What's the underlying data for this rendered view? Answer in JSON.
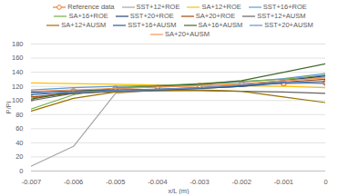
{
  "chart_data": {
    "type": "line",
    "x_label": "x/L (m)",
    "y_label": "P/Pi",
    "x": [
      -0.007,
      -0.006,
      -0.005,
      -0.004,
      -0.003,
      -0.002,
      -0.001,
      0
    ],
    "xlim": [
      -0.007,
      0
    ],
    "xticks": [
      -0.007,
      -0.006,
      -0.005,
      -0.004,
      -0.003,
      -0.002,
      -0.001,
      0
    ],
    "ylim": [
      0,
      180
    ],
    "yticks": [
      0,
      20,
      40,
      60,
      80,
      100,
      120,
      140,
      160,
      180
    ],
    "grid": true,
    "legend": "top",
    "series": [
      {
        "name": "Reference data",
        "color": "#ED7D31",
        "marker": "circle",
        "values": [
          103,
          113,
          117,
          119,
          121,
          123,
          124,
          125
        ]
      },
      {
        "name": "SST+12+ROE",
        "color": "#A5A5A5",
        "values": [
          7,
          35,
          110,
          115,
          117,
          120,
          128,
          133
        ]
      },
      {
        "name": "SA+12+ROE",
        "color": "#FFC000",
        "values": [
          125,
          124,
          123,
          122,
          122,
          121,
          120,
          118
        ]
      },
      {
        "name": "SST+16+ROE",
        "color": "#5B9BD5",
        "values": [
          115,
          118,
          120,
          121,
          123,
          126,
          131,
          138
        ]
      },
      {
        "name": "SA+16+ROE",
        "color": "#70AD47",
        "values": [
          88,
          108,
          118,
          121,
          124,
          127,
          130,
          136
        ]
      },
      {
        "name": "SST+20+ROE",
        "color": "#264478",
        "values": [
          112,
          114,
          115,
          116,
          118,
          121,
          128,
          135
        ]
      },
      {
        "name": "SA+20+ROE",
        "color": "#9E480E",
        "values": [
          105,
          110,
          113,
          115,
          117,
          120,
          126,
          130
        ]
      },
      {
        "name": "SST+12+AUSM",
        "color": "#636363",
        "values": [
          100,
          110,
          113,
          114,
          114,
          113,
          112,
          110
        ]
      },
      {
        "name": "SA+12+AUSM",
        "color": "#997300",
        "values": [
          85,
          103,
          112,
          114,
          115,
          113,
          105,
          97
        ]
      },
      {
        "name": "SST+16+AUSM",
        "color": "#255E91",
        "values": [
          108,
          112,
          114,
          115,
          117,
          120,
          125,
          127
        ]
      },
      {
        "name": "SA+16+AUSM",
        "color": "#43682B",
        "values": [
          102,
          112,
          117,
          120,
          123,
          128,
          140,
          152
        ]
      },
      {
        "name": "SST+20+AUSM",
        "color": "#698ED0",
        "values": [
          110,
          112,
          114,
          116,
          118,
          122,
          126,
          124
        ]
      },
      {
        "name": "SA+20+AUSM",
        "color": "#F1975A",
        "values": [
          113,
          115,
          117,
          119,
          121,
          124,
          128,
          132
        ]
      }
    ]
  }
}
